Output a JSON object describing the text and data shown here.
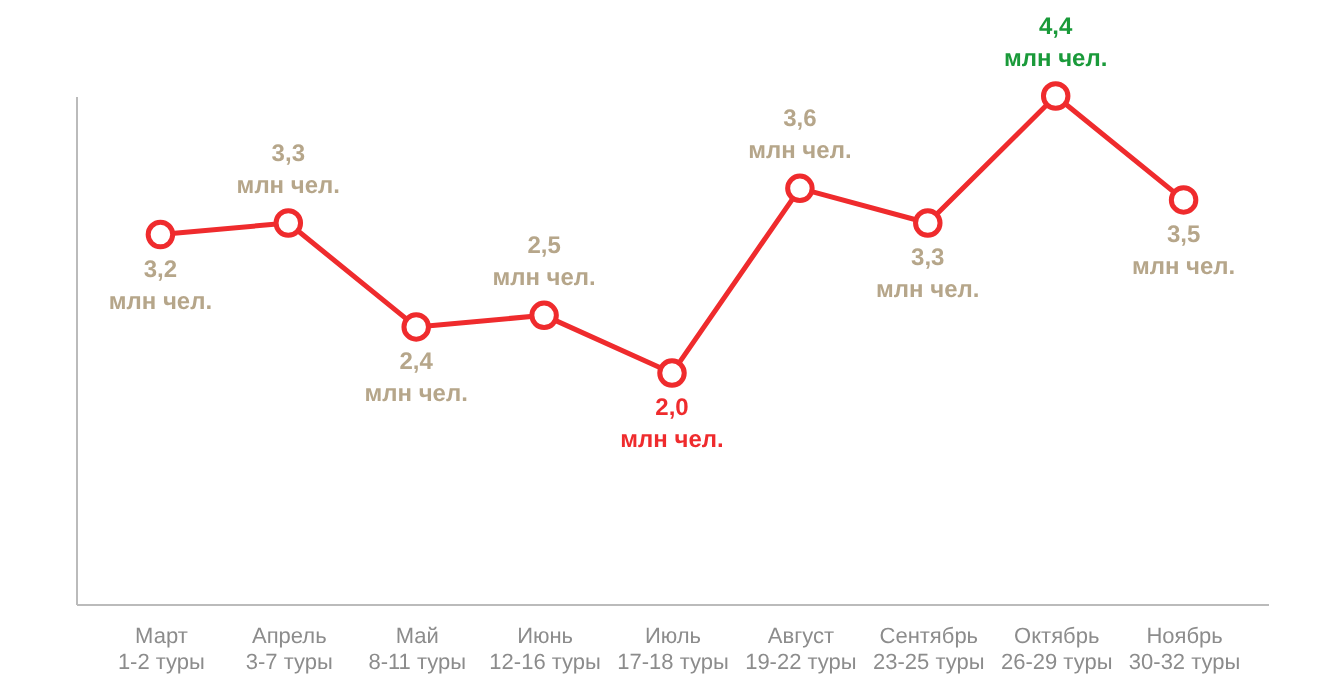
{
  "chart_data": {
    "type": "line",
    "categories": [
      "Март\n1-2 туры",
      "Апрель\n3-7 туры",
      "Май\n8-11 туры",
      "Июнь\n12-16 туры",
      "Июль\n17-18 туры",
      "Август\n19-22 туры",
      "Сентябрь\n23-25 туры",
      "Октябрь\n26-29 туры",
      "Ноябрь\n30-32 туры"
    ],
    "series": [
      {
        "color": "#ef2b2d",
        "values": [
          3.2,
          3.3,
          2.4,
          2.5,
          2.0,
          3.6,
          3.3,
          4.4,
          3.5
        ],
        "value_labels": [
          "3,2 млн чел.",
          "3,3 млн чел.",
          "2,4 млн чел.",
          "2,5 млн чел.",
          "2,0 млн чел.",
          "3,6 млн чел.",
          "3,3 млн чел.",
          "4,4 млн чел.",
          "3,5 млн чел."
        ]
      }
    ],
    "tick_labels": "x",
    "marker": "circle",
    "line_style": "solid",
    "grid": false
  }
}
